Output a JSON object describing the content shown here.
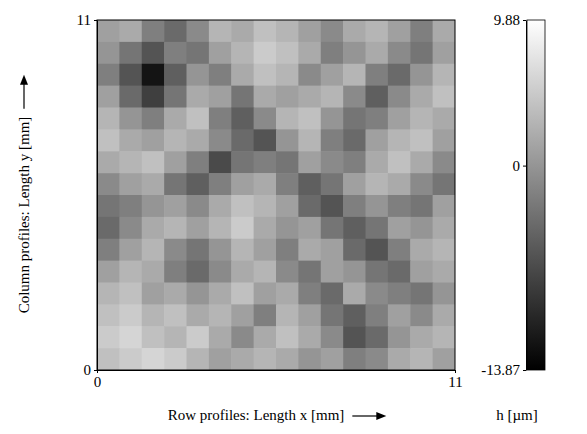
{
  "chart_data": {
    "type": "heatmap",
    "xlabel": "Row profiles: Length x [mm]",
    "ylabel": "Column profiles: Length y [mm]",
    "xlim": [
      0,
      11
    ],
    "ylim": [
      0,
      11
    ],
    "xticks": [
      0,
      11
    ],
    "yticks": [
      0,
      11
    ],
    "z": [
      [
        1,
        2,
        -2,
        -4,
        -1,
        3,
        2,
        4,
        3,
        1,
        -1,
        2,
        3,
        1,
        -2,
        2
      ],
      [
        0,
        -3,
        -6,
        -2,
        -3,
        1,
        3,
        5,
        4,
        2,
        -2,
        0,
        2,
        -1,
        -3,
        1
      ],
      [
        -2,
        -6,
        -12,
        -5,
        0,
        -2,
        2,
        4,
        3,
        -1,
        1,
        3,
        -2,
        -4,
        0,
        3
      ],
      [
        1,
        -4,
        -8,
        -3,
        2,
        1,
        -3,
        2,
        1,
        2,
        3,
        -1,
        -5,
        -1,
        2,
        4
      ],
      [
        3,
        0,
        -2,
        2,
        4,
        -2,
        -5,
        -1,
        3,
        4,
        0,
        -3,
        -2,
        1,
        3,
        2
      ],
      [
        4,
        2,
        1,
        3,
        2,
        -1,
        -4,
        -6,
        0,
        3,
        -2,
        -4,
        1,
        3,
        4,
        1
      ],
      [
        2,
        3,
        4,
        1,
        -2,
        -7,
        -3,
        -2,
        -3,
        1,
        -1,
        -2,
        2,
        4,
        2,
        -1
      ],
      [
        -1,
        1,
        2,
        -3,
        -5,
        -2,
        1,
        2,
        -2,
        -5,
        -3,
        1,
        3,
        2,
        -1,
        -3
      ],
      [
        -3,
        -2,
        0,
        1,
        -1,
        2,
        4,
        3,
        1,
        -4,
        -6,
        -2,
        0,
        -2,
        -3,
        1
      ],
      [
        -4,
        -1,
        2,
        3,
        1,
        3,
        5,
        2,
        0,
        1,
        -3,
        -5,
        -3,
        1,
        0,
        2
      ],
      [
        -2,
        1,
        3,
        -1,
        -3,
        0,
        3,
        1,
        -2,
        2,
        1,
        -4,
        -6,
        -2,
        2,
        3
      ],
      [
        1,
        3,
        2,
        -2,
        -4,
        -1,
        2,
        3,
        -1,
        -3,
        1,
        0,
        -3,
        -4,
        1,
        2
      ],
      [
        3,
        4,
        1,
        2,
        0,
        2,
        4,
        1,
        2,
        -2,
        -4,
        2,
        -1,
        -2,
        -3,
        0
      ],
      [
        4,
        5,
        3,
        4,
        2,
        3,
        1,
        -2,
        3,
        1,
        -3,
        -5,
        -2,
        1,
        -1,
        2
      ],
      [
        5,
        6,
        4,
        3,
        5,
        2,
        -1,
        2,
        4,
        2,
        -1,
        -6,
        -4,
        0,
        2,
        3
      ],
      [
        4,
        5,
        6,
        5,
        3,
        1,
        2,
        3,
        2,
        0,
        1,
        -2,
        -1,
        2,
        3,
        1
      ]
    ],
    "colorbar": {
      "label": "h [µm]",
      "range": [
        -13.87,
        9.88
      ],
      "ticks": [
        -13.87,
        0,
        9.88
      ]
    }
  }
}
